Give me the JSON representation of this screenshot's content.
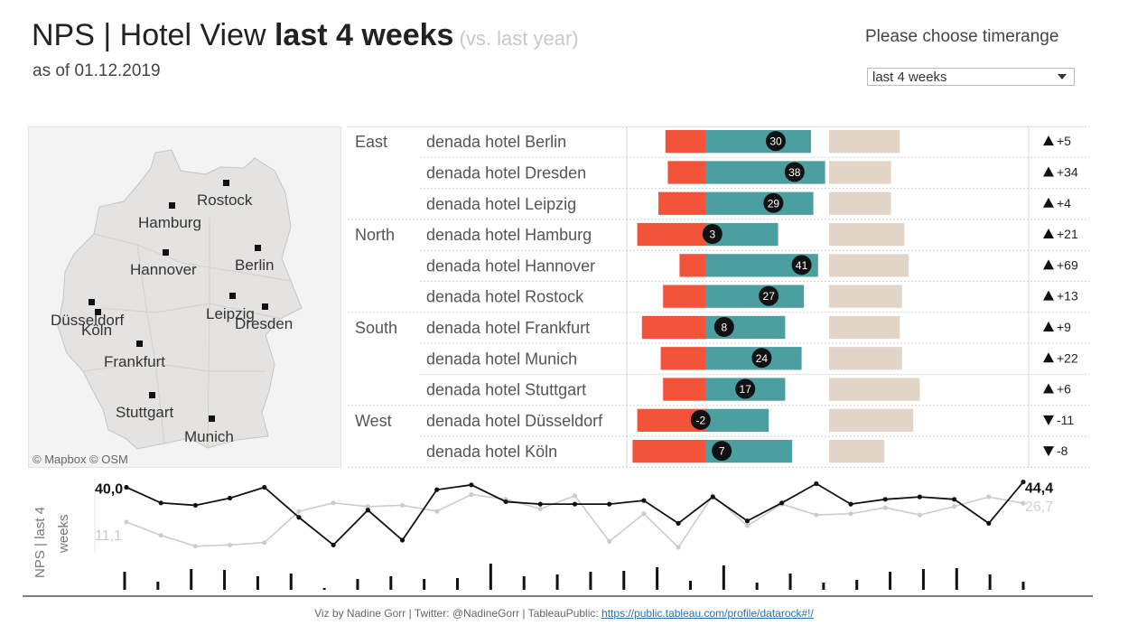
{
  "header": {
    "title_main": "NPS | Hotel View ",
    "title_bold": "last 4 weeks",
    "title_sub": " (vs. last year)",
    "as_of": "as of 01.12.2019"
  },
  "timerange": {
    "label": "Please choose timerange",
    "selected": "last 4 weeks"
  },
  "map": {
    "attribution": "© Mapbox © OSM",
    "cities": [
      "Rostock",
      "Hamburg",
      "Hannover",
      "Berlin",
      "Leipzig",
      "Dresden",
      "Düsseldorf",
      "Köln",
      "Frankfurt",
      "Stuttgart",
      "Munich"
    ]
  },
  "chart_data": [
    {
      "type": "bar",
      "regions": [
        "East",
        "North",
        "South",
        "West"
      ],
      "categories": [
        "denada hotel Berlin",
        "denada hotel Dresden",
        "denada hotel Leipzig",
        "denada hotel Hamburg",
        "denada hotel Hannover",
        "denada hotel Rostock",
        "denada hotel Frankfurt",
        "denada hotel Munich",
        "denada hotel Stuttgart",
        "denada hotel Düsseldorf",
        "denada hotel Köln"
      ],
      "region_of": [
        "East",
        "East",
        "East",
        "North",
        "North",
        "North",
        "South",
        "South",
        "South",
        "West",
        "West"
      ],
      "series": [
        {
          "name": "Detractors",
          "values": [
            17,
            16,
            20,
            29,
            11,
            18,
            27,
            19,
            18,
            29,
            31
          ]
        },
        {
          "name": "Promoters",
          "values": [
            45,
            51,
            46,
            31,
            48,
            42,
            34,
            41,
            34,
            27,
            37
          ]
        },
        {
          "name": "Responses",
          "values": [
            32,
            28,
            28,
            34,
            36,
            33,
            32,
            33,
            41,
            38,
            25
          ]
        }
      ],
      "nps": [
        30,
        38,
        29,
        3,
        41,
        27,
        8,
        24,
        17,
        -2,
        7
      ],
      "change": [
        "+5",
        "+34",
        "+4",
        "+21",
        "+69",
        "+13",
        "+9",
        "+22",
        "+6",
        "-11",
        "-8"
      ],
      "change_dir": [
        "up",
        "up",
        "up",
        "up",
        "up",
        "up",
        "up",
        "up",
        "up",
        "down",
        "down"
      ],
      "colors": {
        "detractors": "#f4533b",
        "promoters": "#4c9fa0",
        "responses": "#e2d5c8",
        "badge": "#111111"
      }
    },
    {
      "type": "line",
      "ylabel": "NPS | last 4 weeks",
      "series": [
        {
          "name": "",
          "values": [
            40.0,
            27,
            25,
            31,
            40,
            15,
            -8,
            21,
            -4,
            38,
            42,
            28,
            26,
            26,
            26,
            29,
            10,
            32,
            12,
            27,
            43,
            26,
            30,
            32,
            30,
            10,
            44.4
          ],
          "color": "#111111"
        },
        {
          "name": "",
          "values": [
            11.1,
            0,
            -9,
            -8,
            -6,
            20,
            27,
            24,
            25,
            20,
            34,
            30,
            22,
            33,
            -5,
            18,
            -10,
            33,
            8,
            26,
            17,
            18,
            23,
            17,
            24,
            32,
            26.7
          ],
          "color": "#cccccc"
        }
      ],
      "start_labels": [
        "40,0",
        "11,1"
      ],
      "end_labels": [
        "44,4",
        "26,7"
      ],
      "bars": [
        20,
        9,
        23,
        22,
        15,
        18,
        2,
        12,
        15,
        12,
        13,
        29,
        15,
        17,
        20,
        21,
        25,
        10,
        27,
        8,
        18,
        8,
        11,
        20,
        23,
        24,
        17,
        9
      ]
    }
  ],
  "footer": {
    "text": "Viz by Nadine Gorr | Twitter: @NadineGorr | TableauPublic: ",
    "link": "https://public.tableau.com/profile/datarock#!/"
  }
}
